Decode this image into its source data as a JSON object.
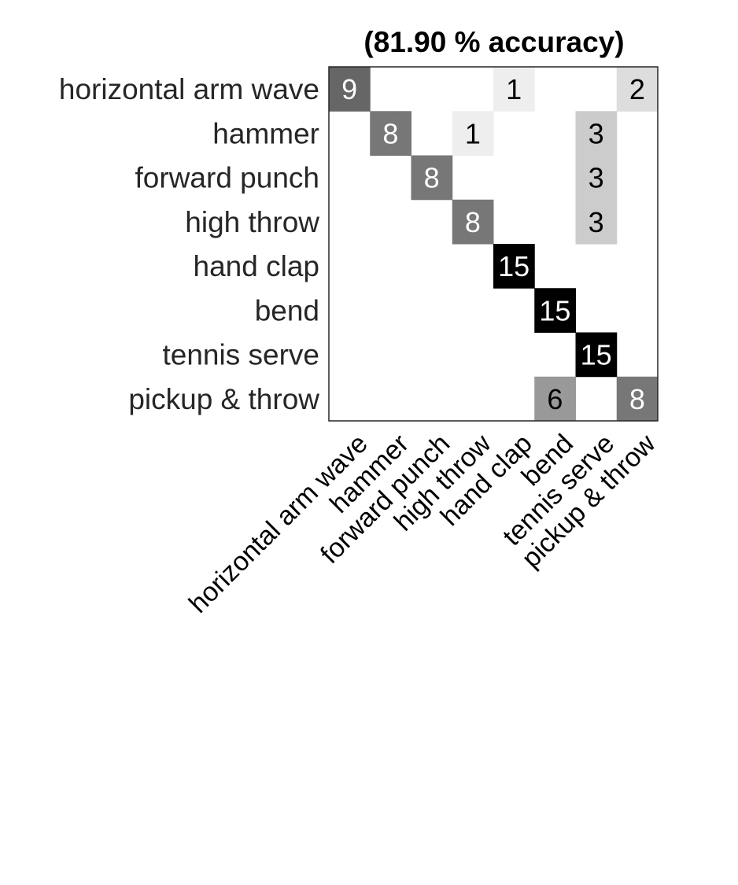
{
  "chart_data": {
    "type": "heatmap",
    "title": "(81.90 % accuracy)",
    "xlabel": "",
    "ylabel": "",
    "row_labels": [
      "horizontal arm wave",
      "hammer",
      "forward punch",
      "high throw",
      "hand clap",
      "bend",
      "tennis serve",
      "pickup & throw"
    ],
    "col_labels": [
      "horizontal arm wave",
      "hammer",
      "forward punch",
      "high throw",
      "hand clap",
      "bend",
      "tennis serve",
      "pickup & throw"
    ],
    "matrix": [
      [
        9,
        0,
        0,
        0,
        1,
        0,
        0,
        2
      ],
      [
        0,
        8,
        0,
        1,
        0,
        0,
        3,
        0
      ],
      [
        0,
        0,
        8,
        0,
        0,
        0,
        3,
        0
      ],
      [
        0,
        0,
        0,
        8,
        0,
        0,
        3,
        0
      ],
      [
        0,
        0,
        0,
        0,
        15,
        0,
        0,
        0
      ],
      [
        0,
        0,
        0,
        0,
        0,
        15,
        0,
        0
      ],
      [
        0,
        0,
        0,
        0,
        0,
        0,
        15,
        0
      ],
      [
        0,
        0,
        0,
        0,
        0,
        6,
        0,
        8
      ]
    ],
    "color_scale": "grayscale",
    "value_range": [
      0,
      15
    ],
    "grid": false,
    "legend": "none"
  }
}
